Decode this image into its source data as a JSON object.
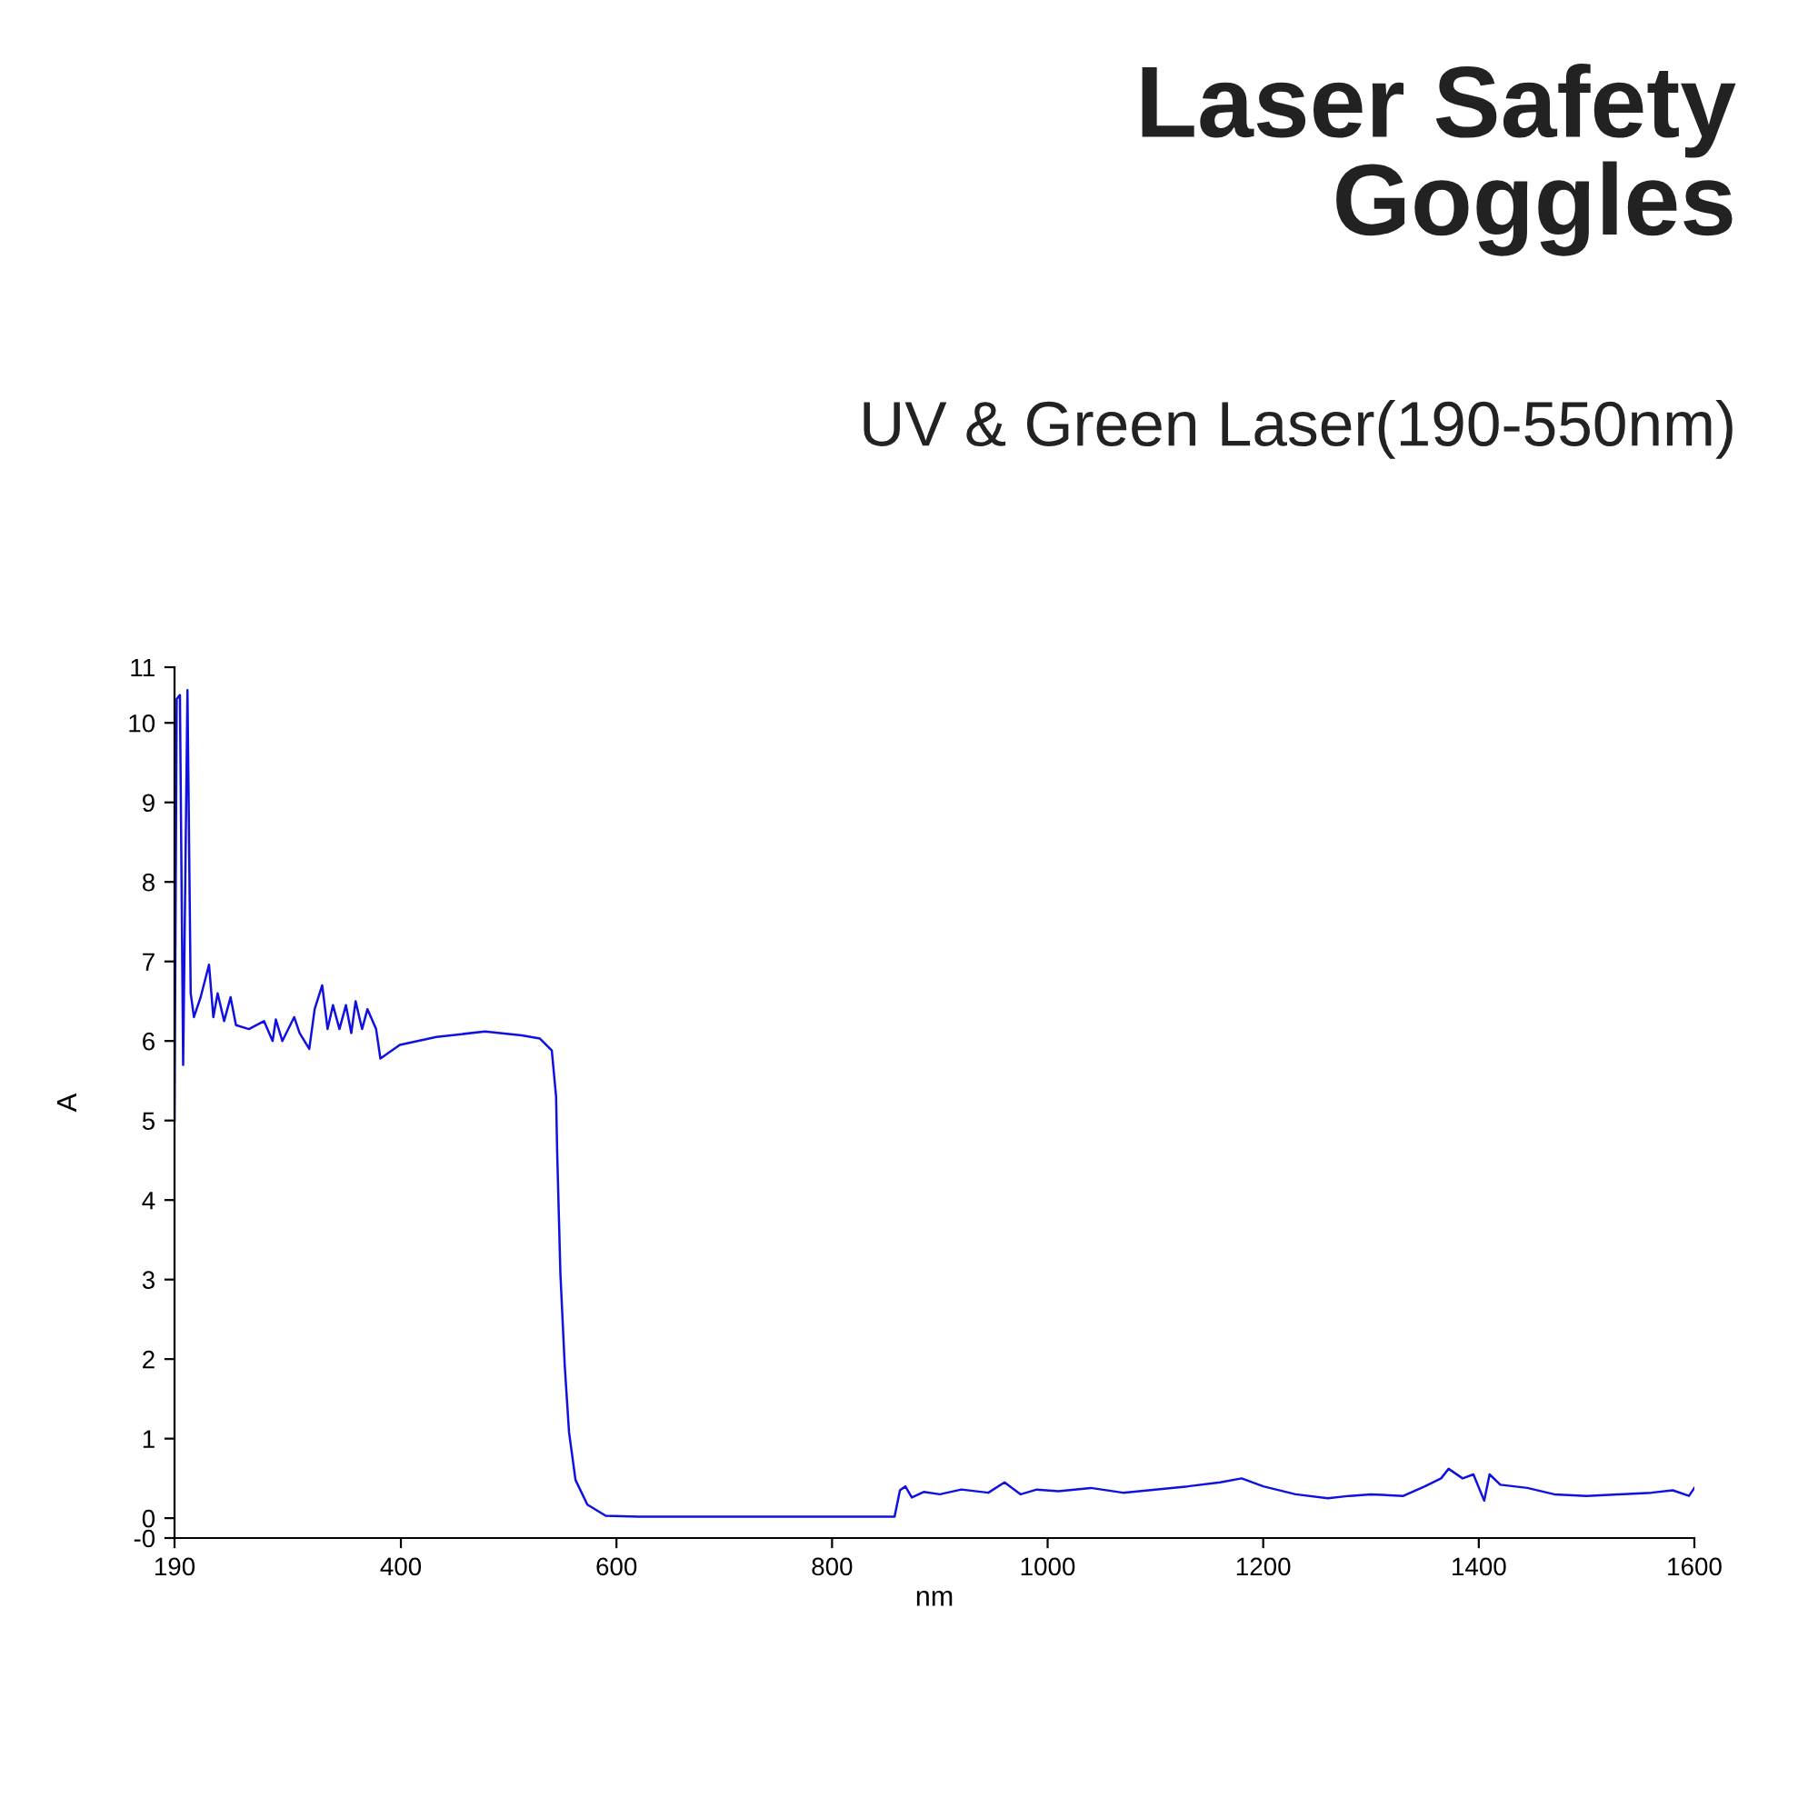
{
  "chart_data": {
    "type": "line",
    "title": "Laser Safety\nGoggles",
    "subtitle": "UV & Green Laser(190-550nm)",
    "xlabel": "nm",
    "ylabel": "A",
    "xlim": [
      190,
      1600
    ],
    "xticks": [
      190,
      400,
      600,
      800,
      1000,
      1200,
      1400,
      1600
    ],
    "ylim": [
      -0.25,
      10.7
    ],
    "yticks": [
      {
        "value": -0.25,
        "label": "-0"
      },
      0,
      1,
      2,
      3,
      4,
      5,
      6,
      7,
      8,
      9,
      10,
      {
        "value": 10.7,
        "label": "11"
      }
    ],
    "grid": false,
    "marker": "none",
    "line_style": "solid",
    "series": [
      {
        "color": "#1010e0",
        "x": [
          190,
          192,
          195,
          198,
          202,
          205,
          208,
          214,
          222,
          226,
          230,
          236,
          242,
          247,
          259,
          273,
          281,
          284,
          290,
          301,
          306,
          315,
          320,
          327,
          332,
          337,
          343,
          349,
          354,
          358,
          364,
          369,
          377,
          381,
          399,
          433,
          478,
          512,
          529,
          540,
          544,
          545,
          548,
          552,
          556,
          562,
          573,
          590,
          620,
          700,
          800,
          858,
          863,
          868,
          874,
          885,
          900,
          920,
          945,
          960,
          975,
          990,
          1010,
          1040,
          1070,
          1100,
          1130,
          1160,
          1180,
          1200,
          1230,
          1260,
          1280,
          1300,
          1330,
          1350,
          1365,
          1372,
          1385,
          1395,
          1405,
          1410,
          1420,
          1445,
          1470,
          1500,
          1530,
          1560,
          1580,
          1595,
          1600
        ],
        "values": [
          5.0,
          10.3,
          10.35,
          5.7,
          10.41,
          6.6,
          6.3,
          6.54,
          6.96,
          6.3,
          6.6,
          6.25,
          6.55,
          6.2,
          6.15,
          6.25,
          6.0,
          6.27,
          6.0,
          6.3,
          6.1,
          5.9,
          6.4,
          6.7,
          6.15,
          6.45,
          6.15,
          6.45,
          6.1,
          6.5,
          6.15,
          6.4,
          6.15,
          5.78,
          5.95,
          6.05,
          6.12,
          6.07,
          6.03,
          5.88,
          5.3,
          4.6,
          3.07,
          1.92,
          1.08,
          0.48,
          0.17,
          0.03,
          0.02,
          0.02,
          0.02,
          0.02,
          0.35,
          0.4,
          0.26,
          0.33,
          0.3,
          0.36,
          0.32,
          0.45,
          0.3,
          0.36,
          0.34,
          0.38,
          0.32,
          0.36,
          0.4,
          0.45,
          0.5,
          0.4,
          0.3,
          0.25,
          0.28,
          0.3,
          0.28,
          0.4,
          0.5,
          0.62,
          0.5,
          0.55,
          0.22,
          0.55,
          0.42,
          0.38,
          0.3,
          0.28,
          0.3,
          0.32,
          0.35,
          0.28,
          0.38
        ]
      }
    ]
  }
}
